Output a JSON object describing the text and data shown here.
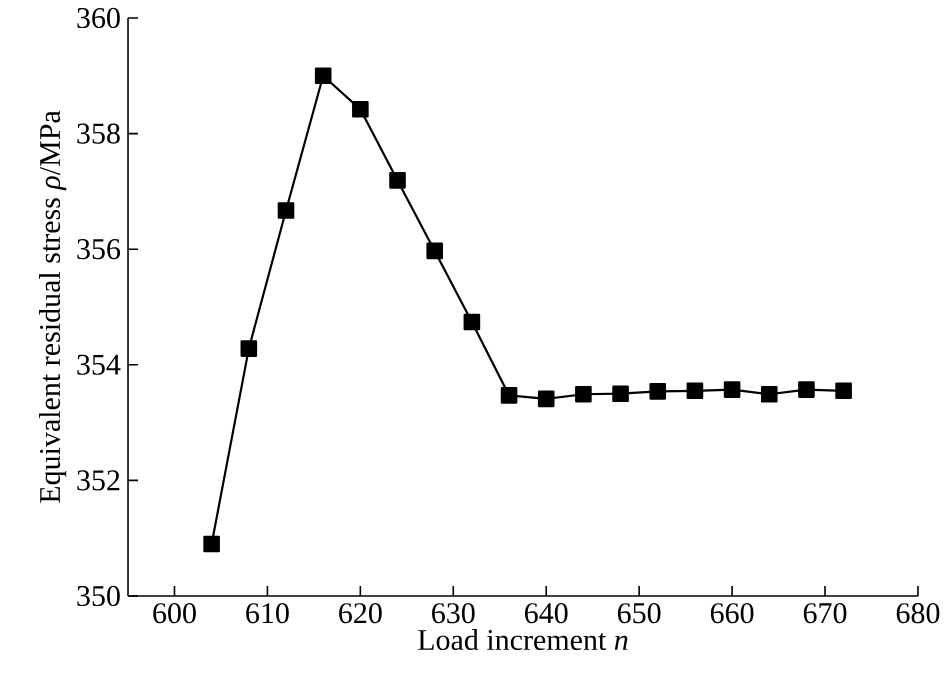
{
  "chart_data": {
    "type": "line",
    "xlabel": "Load increment *n*",
    "ylabel": "Equivalent residual stress *ρ*/MPa",
    "x": [
      604,
      608,
      612,
      616,
      620,
      624,
      628,
      632,
      636,
      640,
      644,
      648,
      652,
      656,
      660,
      664,
      668,
      672
    ],
    "series": [
      {
        "color": "#000000",
        "values": [
          350.9,
          354.28,
          356.67,
          359.0,
          358.42,
          357.19,
          355.97,
          354.74,
          353.47,
          353.41,
          353.49,
          353.5,
          353.54,
          353.55,
          353.57,
          353.49,
          353.57,
          353.55
        ]
      }
    ],
    "xlim": [
      595,
      680
    ],
    "xticks": [
      600,
      610,
      620,
      630,
      640,
      650,
      660,
      670,
      680
    ],
    "ylim": [
      350,
      360
    ],
    "yticks": [
      350,
      352,
      354,
      356,
      358,
      360
    ],
    "grid": false,
    "marker": "square",
    "line_style": "solid"
  }
}
